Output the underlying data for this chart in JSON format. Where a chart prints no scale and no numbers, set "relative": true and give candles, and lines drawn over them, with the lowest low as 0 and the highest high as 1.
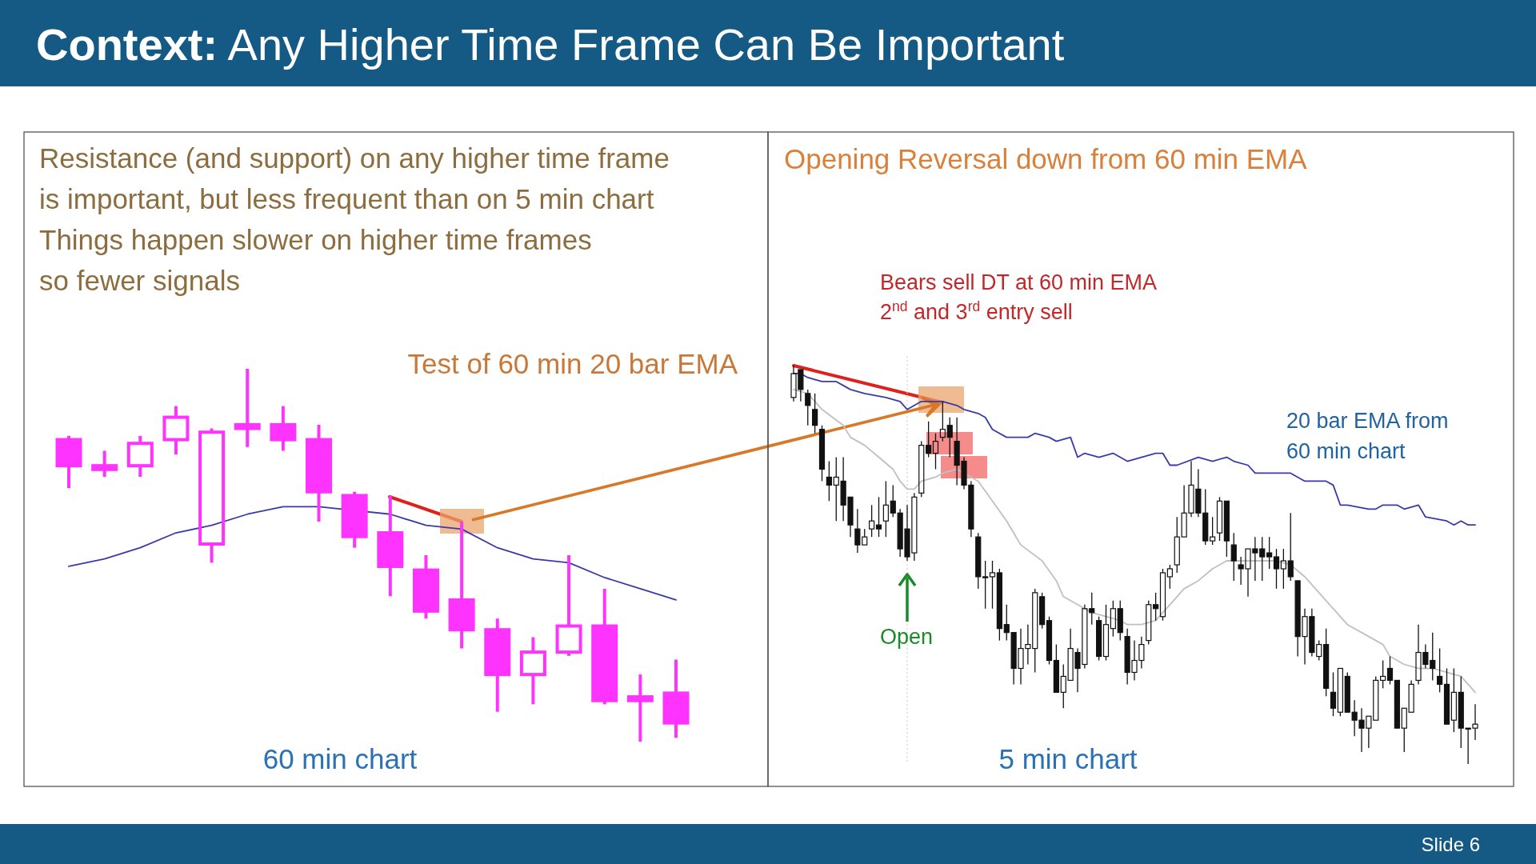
{
  "chart_data": [
    {
      "type": "candlestick",
      "title": "Context: Any Higher Time Frame Can Be Important",
      "relative": true,
      "color": "#ff33ff",
      "categories": [
        null,
        null,
        null,
        null,
        null,
        null,
        null,
        null,
        null,
        null,
        null,
        null,
        null,
        null,
        null,
        null,
        null,
        null
      ],
      "ohlc": [
        [
          0.81,
          0.82,
          0.68,
          0.74
        ],
        [
          0.74,
          0.78,
          0.71,
          0.73
        ],
        [
          0.74,
          0.82,
          0.71,
          0.8
        ],
        [
          0.81,
          0.9,
          0.77,
          0.87
        ],
        [
          0.53,
          0.84,
          0.48,
          0.83
        ],
        [
          0.85,
          1,
          0.79,
          0.84
        ],
        [
          0.85,
          0.9,
          0.78,
          0.81
        ],
        [
          0.81,
          0.85,
          0.59,
          0.67
        ],
        [
          0.66,
          0.67,
          0.52,
          0.55
        ],
        [
          0.56,
          0.66,
          0.39,
          0.47
        ],
        [
          0.46,
          0.5,
          0.33,
          0.35
        ],
        [
          0.38,
          0.59,
          0.25,
          0.3
        ],
        [
          0.3,
          0.33,
          0.08,
          0.18
        ],
        [
          0.18,
          0.28,
          0.1,
          0.24
        ],
        [
          0.24,
          0.5,
          0.23,
          0.31
        ],
        [
          0.31,
          0.41,
          0.1,
          0.11
        ],
        [
          0.12,
          0.18,
          0,
          0.11
        ],
        [
          0.13,
          0.22,
          0.01,
          0.05
        ]
      ],
      "series": [
        {
          "type": "line",
          "color": "#3a3aa8",
          "values": [
            0.47,
            0.49,
            0.52,
            0.56,
            0.58,
            0.61,
            0.63,
            0.63,
            null,
            0.61,
            0.58,
            0.57,
            0.52,
            0.49,
            0.48,
            0.44,
            0.41,
            0.38
          ]
        }
      ],
      "annotations": [
        "Resistance (and support) on any higher time frame",
        "is important, but less frequent than on 5 min chart",
        "Things happen slower on higher time frames",
        "so fewer signals",
        "Test of 60 min 20 bar EMA",
        "60 min chart"
      ]
    },
    {
      "type": "candlestick",
      "title": "Opening Reversal down from 60 min EMA",
      "relative": true,
      "color": "#111111",
      "categories": [
        null,
        null,
        null,
        null,
        null,
        null,
        null,
        null,
        null,
        null,
        null,
        null,
        null,
        null,
        null,
        null,
        null,
        null,
        null,
        null,
        null,
        null,
        null,
        null,
        null,
        null,
        null,
        null,
        null,
        null,
        null,
        null,
        null,
        null,
        null,
        null,
        null,
        null,
        null,
        null,
        null,
        null,
        null,
        null,
        null,
        null,
        null,
        null,
        null,
        null,
        null,
        null,
        null,
        null,
        null,
        null,
        null,
        null,
        null,
        null,
        null,
        null,
        null,
        null,
        null,
        null,
        null,
        null,
        null,
        null,
        null,
        null,
        null,
        null,
        null,
        null,
        null,
        null,
        null,
        null,
        null,
        null,
        null,
        null,
        null,
        null,
        null,
        null,
        null,
        null,
        null,
        null,
        null,
        null,
        null,
        null,
        null
      ],
      "ohlc": [
        [
          0.92,
          1,
          0.91,
          0.98
        ],
        [
          0.99,
          0.99,
          0.91,
          0.94
        ],
        [
          0.93,
          0.94,
          0.85,
          0.9
        ],
        [
          0.89,
          0.93,
          0.83,
          0.85
        ],
        [
          0.84,
          0.85,
          0.71,
          0.74
        ],
        [
          0.72,
          0.76,
          0.66,
          0.7
        ],
        [
          0.7,
          0.77,
          0.61,
          0.72
        ],
        [
          0.71,
          0.77,
          0.61,
          0.65
        ],
        [
          0.67,
          0.67,
          0.57,
          0.6
        ],
        [
          0.59,
          0.64,
          0.53,
          0.55
        ],
        [
          0.55,
          0.59,
          0.55,
          0.57
        ],
        [
          0.59,
          0.65,
          0.57,
          0.61
        ],
        [
          0.6,
          0.67,
          0.57,
          0.59
        ],
        [
          0.61,
          0.71,
          0.57,
          0.65
        ],
        [
          0.66,
          0.7,
          0.62,
          0.63
        ],
        [
          0.63,
          0.64,
          0.52,
          0.54
        ],
        [
          0.59,
          0.65,
          0.51,
          0.52
        ],
        [
          0.53,
          0.68,
          0.51,
          0.67
        ],
        [
          0.68,
          0.81,
          0.67,
          0.8
        ],
        [
          0.8,
          0.86,
          0.77,
          0.78
        ],
        [
          0.78,
          0.83,
          0.74,
          0.81
        ],
        [
          0.82,
          0.91,
          0.81,
          0.84
        ],
        [
          0.85,
          0.87,
          0.77,
          0.82
        ],
        [
          0.81,
          0.87,
          0.7,
          0.75
        ],
        [
          0.76,
          0.77,
          0.69,
          0.7
        ],
        [
          0.7,
          0.71,
          0.57,
          0.59
        ],
        [
          0.57,
          0.58,
          0.44,
          0.47
        ],
        [
          0.47,
          0.51,
          0.39,
          0.47
        ],
        [
          0.47,
          0.51,
          0.39,
          0.48
        ],
        [
          0.48,
          0.49,
          0.31,
          0.34
        ],
        [
          0.35,
          0.4,
          0.31,
          0.33
        ],
        [
          0.33,
          0.33,
          0.2,
          0.24
        ],
        [
          0.24,
          0.34,
          0.2,
          0.29
        ],
        [
          0.29,
          0.35,
          0.25,
          0.3
        ],
        [
          0.29,
          0.44,
          0.23,
          0.43
        ],
        [
          0.42,
          0.43,
          0.34,
          0.35
        ],
        [
          0.36,
          0.37,
          0.25,
          0.26
        ],
        [
          0.26,
          0.3,
          0.18,
          0.18
        ],
        [
          0.18,
          0.25,
          0.14,
          0.22
        ],
        [
          0.21,
          0.34,
          0.21,
          0.29
        ],
        [
          0.28,
          0.29,
          0.18,
          0.24
        ],
        [
          0.25,
          0.4,
          0.24,
          0.39
        ],
        [
          0.39,
          0.43,
          0.35,
          0.38
        ],
        [
          0.36,
          0.37,
          0.26,
          0.27
        ],
        [
          0.27,
          0.4,
          0.26,
          0.35
        ],
        [
          0.34,
          0.41,
          0.32,
          0.39
        ],
        [
          0.39,
          0.41,
          0.31,
          0.33
        ],
        [
          0.32,
          0.34,
          0.2,
          0.23
        ],
        [
          0.23,
          0.31,
          0.21,
          0.26
        ],
        [
          0.26,
          0.32,
          0.24,
          0.3
        ],
        [
          0.31,
          0.41,
          0.3,
          0.4
        ],
        [
          0.4,
          0.43,
          0.36,
          0.39
        ],
        [
          0.37,
          0.49,
          0.36,
          0.48
        ],
        [
          0.47,
          0.5,
          0.44,
          0.49
        ],
        [
          0.5,
          0.62,
          0.48,
          0.57
        ],
        [
          0.57,
          0.7,
          0.57,
          0.63
        ],
        [
          0.63,
          0.76,
          0.62,
          0.7
        ],
        [
          0.69,
          0.74,
          0.62,
          0.63
        ],
        [
          0.63,
          0.69,
          0.55,
          0.56
        ],
        [
          0.56,
          0.62,
          0.55,
          0.57
        ],
        [
          0.58,
          0.67,
          0.56,
          0.66
        ],
        [
          0.66,
          0.66,
          0.52,
          0.56
        ],
        [
          0.55,
          0.58,
          0.46,
          0.51
        ],
        [
          0.5,
          0.52,
          0.45,
          0.49
        ],
        [
          0.49,
          0.54,
          0.42,
          0.54
        ],
        [
          0.54,
          0.57,
          0.46,
          0.53
        ],
        [
          0.54,
          0.57,
          0.46,
          0.52
        ],
        [
          0.53,
          0.57,
          0.49,
          0.52
        ],
        [
          0.52,
          0.54,
          0.44,
          0.49
        ],
        [
          0.49,
          0.54,
          0.44,
          0.51
        ],
        [
          0.51,
          0.63,
          0.46,
          0.47
        ],
        [
          0.46,
          0.46,
          0.27,
          0.32
        ],
        [
          0.32,
          0.39,
          0.25,
          0.37
        ],
        [
          0.37,
          0.39,
          0.27,
          0.28
        ],
        [
          0.27,
          0.31,
          0.26,
          0.3
        ],
        [
          0.3,
          0.34,
          0.17,
          0.19
        ],
        [
          0.18,
          0.23,
          0.12,
          0.14
        ],
        [
          0.13,
          0.24,
          0.12,
          0.24
        ],
        [
          0.22,
          0.23,
          0.13,
          0.13
        ],
        [
          0.13,
          0.16,
          0.07,
          0.11
        ],
        [
          0.11,
          0.14,
          0.03,
          0.09
        ],
        [
          0.09,
          0.12,
          0.04,
          0.12
        ],
        [
          0.11,
          0.22,
          0.11,
          0.21
        ],
        [
          0.21,
          0.26,
          0.19,
          0.22
        ],
        [
          0.24,
          0.27,
          0.2,
          0.21
        ],
        [
          0.21,
          0.21,
          0.09,
          0.09
        ],
        [
          0.09,
          0.14,
          0.03,
          0.14
        ],
        [
          0.13,
          0.21,
          0.13,
          0.2
        ],
        [
          0.21,
          0.35,
          0.2,
          0.28
        ],
        [
          0.28,
          0.3,
          0.24,
          0.25
        ],
        [
          0.26,
          0.33,
          0.21,
          0.24
        ],
        [
          0.22,
          0.29,
          0.18,
          0.2
        ],
        [
          0.2,
          0.24,
          0.1,
          0.1
        ],
        [
          0.11,
          0.24,
          0.08,
          0.18
        ],
        [
          0.18,
          0.22,
          0.04,
          0.09
        ],
        [
          0.09,
          0.09,
          0,
          0.09
        ],
        [
          0.09,
          0.15,
          0.06,
          0.1
        ]
      ],
      "series": [
        {
          "type": "line",
          "color": "#3a3aa8",
          "values": [
            0.98,
            0.98,
            0.97,
            null,
            0.96,
            null,
            0.96,
            0.95,
            0.94,
            null,
            0.93,
            null,
            null,
            0.92,
            null,
            0.91,
            0.89,
            0.9,
            0.91,
            null,
            null,
            0.91,
            null,
            0.9,
            0.89,
            null,
            0.88,
            0.87,
            0.84,
            null,
            0.82,
            0.82,
            null,
            0.82,
            0.83,
            null,
            0.82,
            0.81,
            null,
            0.82,
            0.77,
            0.78,
            null,
            0.77,
            null,
            0.78,
            null,
            0.76,
            null,
            0.77,
            null,
            0.78,
            0.78,
            0.75,
            0.75,
            null,
            null,
            0.77,
            null,
            0.76,
            null,
            0.77,
            0.76,
            null,
            0.75,
            0.73,
            null,
            0.73,
            null,
            null,
            0.73,
            null,
            0.71,
            0.71,
            null,
            0.71,
            0.7,
            0.65,
            0.65,
            null,
            null,
            0.64,
            0.64,
            0.65,
            null,
            0.65,
            0.64,
            null,
            0.65,
            0.62,
            null,
            null,
            0.61,
            0.6,
            0.61,
            0.6,
            0.6
          ]
        },
        {
          "type": "line",
          "color": "#c0c0c0",
          "values": [
            0.94,
            null,
            0.93,
            null,
            0.89,
            null,
            null,
            0.85,
            0.82,
            null,
            0.8,
            null,
            0.77,
            null,
            0.74,
            0.71,
            0.69,
            0.69,
            0.71,
            null,
            0.72,
            0.73,
            null,
            0.74,
            null,
            null,
            0.71,
            null,
            0.66,
            null,
            0.61,
            null,
            0.55,
            null,
            null,
            0.51,
            null,
            0.46,
            0.42,
            null,
            0.4,
            null,
            0.38,
            null,
            0.37,
            null,
            0.36,
            0.35,
            null,
            0.35,
            null,
            0.36,
            null,
            0.4,
            null,
            0.44,
            null,
            0.46,
            null,
            0.49,
            null,
            0.51,
            null,
            0.51,
            null,
            0.51,
            null,
            null,
            0.51,
            null,
            0.5,
            null,
            0.47,
            null,
            0.43,
            null,
            0.39,
            null,
            0.35,
            null,
            null,
            0.32,
            null,
            0.3,
            0.27,
            null,
            0.25,
            null,
            0.24,
            null,
            0.24,
            null,
            0.23,
            null,
            0.22,
            null,
            0.18
          ]
        }
      ],
      "annotations": [
        "Bears sell DT at 60 min EMA",
        "2$^{nd}$ and 3$^{rd}$ entry sell",
        "20 bar EMA from 60 min chart",
        "Open",
        "5 min chart",
        "Slide  6"
      ]
    }
  ]
}
